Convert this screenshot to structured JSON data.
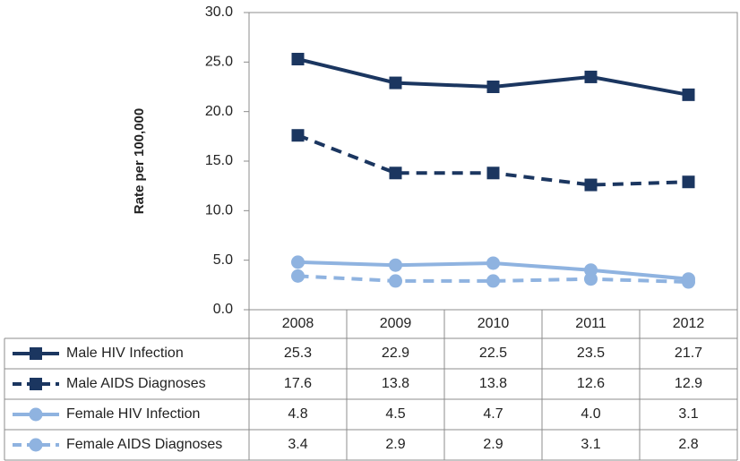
{
  "chart_data": {
    "type": "line",
    "y_label": "Rate per 100,000",
    "categories": [
      "2008",
      "2009",
      "2010",
      "2011",
      "2012"
    ],
    "ylim": [
      0,
      30
    ],
    "yticks": [
      {
        "value": 0,
        "label": "0.0"
      },
      {
        "value": 5,
        "label": "5.0"
      },
      {
        "value": 10,
        "label": "10.0"
      },
      {
        "value": 15,
        "label": "15.0"
      },
      {
        "value": 20,
        "label": "20.0"
      },
      {
        "value": 25,
        "label": "25.0"
      },
      {
        "value": 30,
        "label": "30.0"
      }
    ],
    "series": [
      {
        "name": "Male HIV Infection",
        "color": "#1b3660",
        "dash": false,
        "marker": "square",
        "values": [
          25.3,
          22.9,
          22.5,
          23.5,
          21.7
        ],
        "value_labels": [
          "25.3",
          "22.9",
          "22.5",
          "23.5",
          "21.7"
        ]
      },
      {
        "name": "Male AIDS Diagnoses",
        "color": "#1b3660",
        "dash": true,
        "marker": "square",
        "values": [
          17.6,
          13.8,
          13.8,
          12.6,
          12.9
        ],
        "value_labels": [
          "17.6",
          "13.8",
          "13.8",
          "12.6",
          "12.9"
        ]
      },
      {
        "name": "Female HIV Infection",
        "color": "#8fb3e0",
        "dash": false,
        "marker": "circle",
        "values": [
          4.8,
          4.5,
          4.7,
          4.0,
          3.1
        ],
        "value_labels": [
          "4.8",
          "4.5",
          "4.7",
          "4.0",
          "3.1"
        ]
      },
      {
        "name": "Female AIDS Diagnoses",
        "color": "#8fb3e0",
        "dash": true,
        "marker": "circle",
        "values": [
          3.4,
          2.9,
          2.9,
          3.1,
          2.8
        ],
        "value_labels": [
          "3.4",
          "2.9",
          "2.9",
          "3.1",
          "2.8"
        ]
      }
    ]
  }
}
